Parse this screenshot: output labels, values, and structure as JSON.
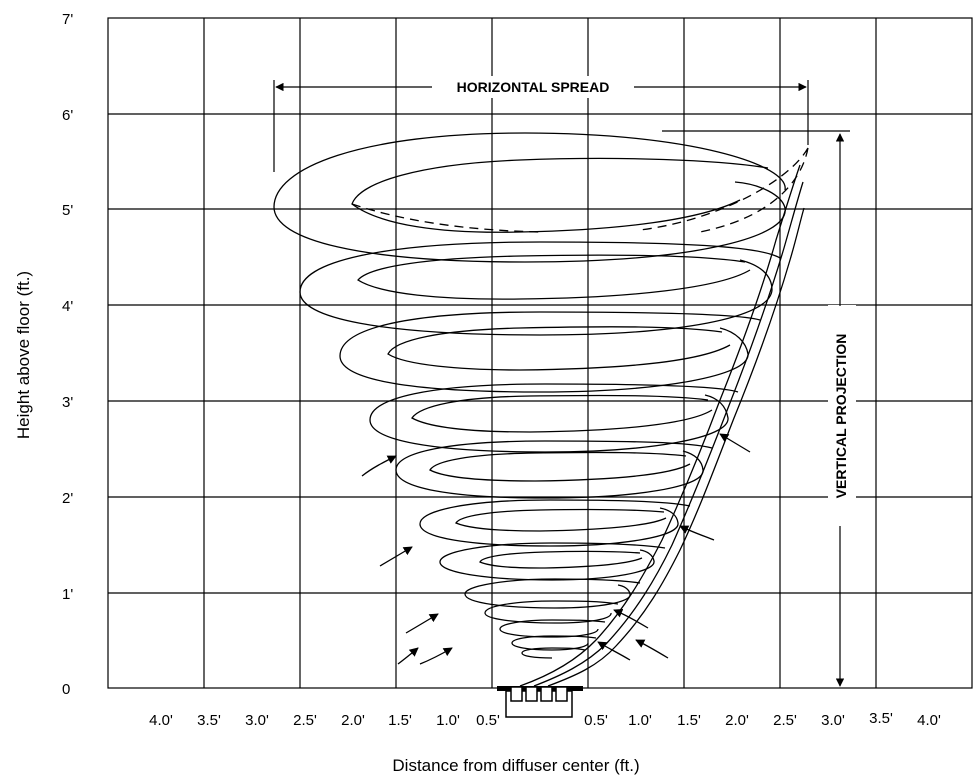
{
  "y_axis": {
    "label": "Height above floor (ft.)",
    "ticks": [
      "7'",
      "6'",
      "5'",
      "4'",
      "3'",
      "2'",
      "1'",
      "0"
    ]
  },
  "x_axis": {
    "label": "Distance from diffuser center (ft.)",
    "left_ticks": [
      "4.0'",
      "3.5'",
      "3.0'",
      "2.5'",
      "2.0'",
      "1.5'",
      "1.0'",
      "0.5'"
    ],
    "right_ticks": [
      "0.5'",
      "1.0'",
      "1.5'",
      "2.0'",
      "2.5'",
      "3.0'",
      "3.5'",
      "4.0'"
    ]
  },
  "annotations": {
    "horizontal_spread": "HORIZONTAL SPREAD",
    "vertical_projection": "VERTICAL PROJECTION"
  },
  "chart_data": {
    "type": "diagram",
    "subject": "swirl diffuser air spiral",
    "y_range_ft": [
      0,
      7
    ],
    "x_range_ft": [
      -4.0,
      4.0
    ],
    "vertical_projection_ft": 5.8,
    "horizontal_spread_ft": [
      -2.8,
      2.8
    ]
  }
}
